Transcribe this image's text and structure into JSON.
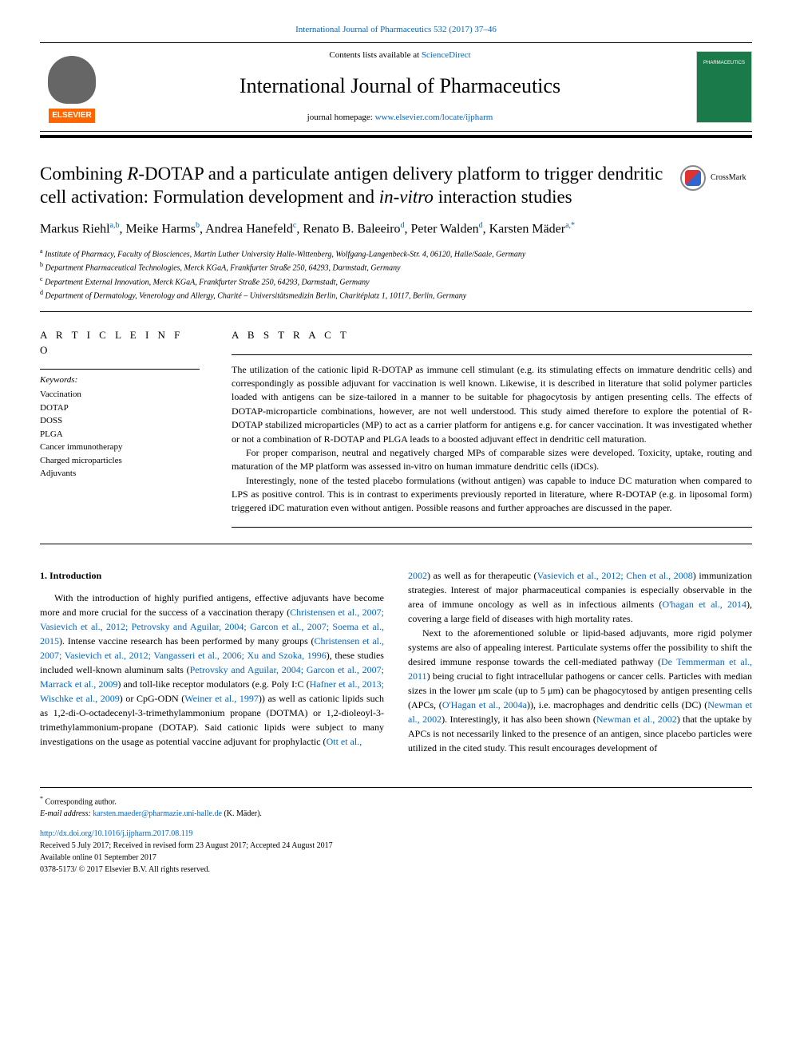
{
  "header": {
    "citation": "International Journal of Pharmaceutics 532 (2017) 37–46",
    "contents_prefix": "Contents lists available at ",
    "contents_link": "ScienceDirect",
    "journal_title": "International Journal of Pharmaceutics",
    "homepage_prefix": "journal homepage: ",
    "homepage_link": "www.elsevier.com/locate/ijpharm",
    "publisher_logo_text": "ELSEVIER",
    "cover_text": "PHARMACEUTICS",
    "crossmark_label": "CrossMark"
  },
  "article": {
    "title_html": "Combining <span class='italic'>R</span>-DOTAP and a particulate antigen delivery platform to trigger dendritic cell activation: Formulation development and <span class='italic'>in-vitro</span> interaction studies",
    "authors_html": "Markus Riehl<span class='sup'>a,b</span>, Meike Harms<span class='sup'>b</span>, Andrea Hanefeld<span class='sup'>c</span>, Renato B. Baleeiro<span class='sup'>d</span>, Peter Walden<span class='sup'>d</span>, Karsten Mäder<span class='sup'>a,*</span>",
    "affiliations": [
      {
        "sup": "a",
        "text": "Institute of Pharmacy, Faculty of Biosciences, Martin Luther University Halle-Wittenberg, Wolfgang-Langenbeck-Str. 4, 06120, Halle/Saale, Germany"
      },
      {
        "sup": "b",
        "text": "Department Pharmaceutical Technologies, Merck KGaA, Frankfurter Straße 250, 64293, Darmstadt, Germany"
      },
      {
        "sup": "c",
        "text": "Department External Innovation, Merck KGaA, Frankfurter Straße 250, 64293, Darmstadt, Germany"
      },
      {
        "sup": "d",
        "text": "Department of Dermatology, Venerology and Allergy, Charité – Universitätsmedizin Berlin, Charitéplatz 1, 10117, Berlin, Germany"
      }
    ]
  },
  "info": {
    "heading": "A R T I C L E  I N F O",
    "keywords_label": "Keywords:",
    "keywords": [
      "Vaccination",
      "DOTAP",
      "DOSS",
      "PLGA",
      "Cancer immunotherapy",
      "Charged microparticles",
      "Adjuvants"
    ]
  },
  "abstract": {
    "heading": "A B S T R A C T",
    "paragraphs": [
      "The utilization of the cationic lipid R-DOTAP as immune cell stimulant (e.g. its stimulating effects on immature dendritic cells) and correspondingly as possible adjuvant for vaccination is well known. Likewise, it is described in literature that solid polymer particles loaded with antigens can be size-tailored in a manner to be suitable for phagocytosis by antigen presenting cells. The effects of DOTAP-microparticle combinations, however, are not well understood. This study aimed therefore to explore the potential of R-DOTAP stabilized microparticles (MP) to act as a carrier platform for antigens e.g. for cancer vaccination. It was investigated whether or not a combination of R-DOTAP and PLGA leads to a boosted adjuvant effect in dendritic cell maturation.",
      "For proper comparison, neutral and negatively charged MPs of comparable sizes were developed. Toxicity, uptake, routing and maturation of the MP platform was assessed in-vitro on human immature dendritic cells (iDCs).",
      "Interestingly, none of the tested placebo formulations (without antigen) was capable to induce DC maturation when compared to LPS as positive control. This is in contrast to experiments previously reported in literature, where R-DOTAP (e.g. in liposomal form) triggered iDC maturation even without antigen. Possible reasons and further approaches are discussed in the paper."
    ]
  },
  "body": {
    "section_number": "1.",
    "section_title": "Introduction",
    "left_html": "With the introduction of highly purified antigens, effective adjuvants have become more and more crucial for the success of a vaccination therapy (<span class='cite'>Christensen et al., 2007; Vasievich et al., 2012; Petrovsky and Aguilar, 2004; Garcon et al., 2007; Soema et al., 2015</span>). Intense vaccine research has been performed by many groups (<span class='cite'>Christensen et al., 2007; Vasievich et al., 2012; Vangasseri et al., 2006; Xu and Szoka, 1996</span>), these studies included well-known aluminum salts (<span class='cite'>Petrovsky and Aguilar, 2004; Garcon et al., 2007; Marrack et al., 2009</span>) and toll-like receptor modulators (e.g. Poly I:C (<span class='cite'>Hafner et al., 2013; Wischke et al., 2009</span>) or CpG-ODN (<span class='cite'>Weiner et al., 1997</span>)) as well as cationic lipids such as 1,2-di-O-octadecenyl-3-trimethylammonium propane (DOTMA) or 1,2-dioleoyl-3-trimethylammonium-propane (DOTAP). Said cationic lipids were subject to many investigations on the usage as potential vaccine adjuvant for prophylactic (<span class='cite'>Ott et al.,</span>",
    "right_html": "<span class='cite'>2002</span>) as well as for therapeutic (<span class='cite'>Vasievich et al., 2012; Chen et al., 2008</span>) immunization strategies. Interest of major pharmaceutical companies is especially observable in the area of immune oncology as well as in infectious ailments (<span class='cite'>O'hagan et al., 2014</span>), covering a large field of diseases with high mortality rates.</p><p>Next to the aforementioned soluble or lipid-based adjuvants, more rigid polymer systems are also of appealing interest. Particulate systems offer the possibility to shift the desired immune response towards the cell-mediated pathway (<span class='cite'>De Temmerman et al., 2011</span>) being crucial to fight intracellular pathogens or cancer cells. Particles with median sizes in the lower μm scale (up to 5 μm) can be phagocytosed by antigen presenting cells (APCs, (<span class='cite'>O'Hagan et al., 2004a</span>)), i.e. macrophages and dendritic cells (DC) (<span class='cite'>Newman et al., 2002</span>). Interestingly, it has also been shown (<span class='cite'>Newman et al., 2002</span>) that the uptake by APCs is not necessarily linked to the presence of an antigen, since placebo particles were utilized in the cited study. This result encourages development of"
  },
  "footer": {
    "corr_marker": "*",
    "corr_text": "Corresponding author.",
    "email_label": "E-mail address: ",
    "email": "karsten.maeder@pharmazie.uni-halle.de",
    "email_suffix": " (K. Mäder).",
    "doi": "http://dx.doi.org/10.1016/j.ijpharm.2017.08.119",
    "received": "Received 5 July 2017; Received in revised form 23 August 2017; Accepted 24 August 2017",
    "available": "Available online 01 September 2017",
    "copyright": "0378-5173/ © 2017 Elsevier B.V. All rights reserved."
  },
  "colors": {
    "link": "#0066cc",
    "elsevier_orange": "#ff6600",
    "cover_green": "#1a7a4a"
  }
}
